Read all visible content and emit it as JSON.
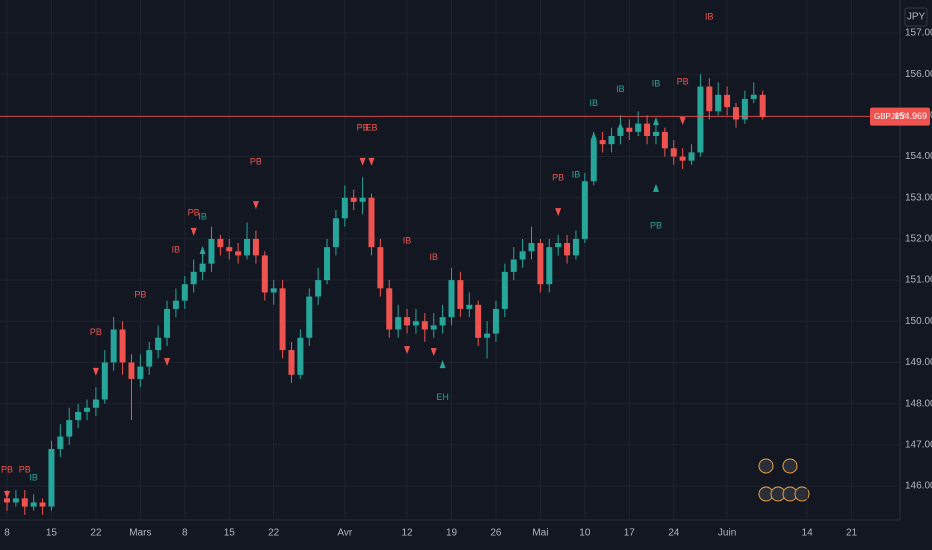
{
  "chart_data": {
    "type": "candlestick",
    "symbol": "GBPJPY",
    "currency": "JPY",
    "last_price": {
      "value": 154.969,
      "label": "154.969"
    },
    "up_color": "#26a69a",
    "down_color": "#ef5350",
    "grid": true,
    "categories": [
      "8",
      null,
      null,
      null,
      null,
      "15",
      null,
      null,
      null,
      null,
      "22",
      null,
      null,
      null,
      null,
      "Mars",
      null,
      null,
      null,
      null,
      "8",
      null,
      null,
      null,
      null,
      "15",
      null,
      null,
      null,
      null,
      "22",
      null,
      null,
      null,
      null,
      null,
      null,
      null,
      "Avr",
      null,
      null,
      null,
      null,
      null,
      null,
      "12",
      null,
      null,
      null,
      null,
      "19",
      null,
      null,
      null,
      null,
      "26",
      null,
      null,
      null,
      null,
      "Mai",
      null,
      null,
      null,
      null,
      "10",
      null,
      null,
      null,
      null,
      "17",
      null,
      null,
      null,
      null,
      "24",
      null,
      null,
      null,
      null,
      null,
      "Juin",
      null,
      null,
      null,
      null,
      null,
      null,
      null,
      null,
      "14",
      null,
      null,
      null,
      null,
      "21",
      null,
      null,
      null,
      null
    ],
    "open": [
      145.7,
      145.6,
      145.7,
      145.5,
      145.6,
      145.5,
      146.9,
      147.2,
      147.6,
      147.8,
      147.9,
      148.1,
      149.0,
      149.8,
      149.0,
      148.6,
      148.9,
      149.3,
      149.6,
      150.3,
      150.5,
      150.9,
      151.2,
      151.4,
      152.0,
      151.8,
      151.7,
      151.6,
      152.0,
      151.6,
      150.7,
      150.8,
      149.3,
      148.7,
      149.6,
      150.6,
      151.0,
      151.8,
      152.5,
      153.0,
      152.9,
      153.0,
      151.8,
      150.8,
      149.8,
      150.1,
      149.9,
      150.0,
      149.8,
      149.9,
      150.1,
      151.0,
      150.3,
      150.4,
      149.6,
      149.7,
      150.3,
      151.2,
      151.5,
      151.7,
      151.9,
      150.9,
      151.8,
      151.9,
      151.6,
      152.0,
      153.4,
      154.4,
      154.3,
      154.5,
      154.7,
      154.6,
      154.8,
      154.5,
      154.6,
      154.2,
      154.0,
      153.9,
      154.1,
      155.7,
      155.1,
      155.5,
      155.2,
      154.9,
      155.4,
      155.5,
      null,
      null,
      null,
      null,
      null,
      null,
      null,
      null,
      null,
      null,
      null,
      null,
      null,
      null
    ],
    "high": [
      145.9,
      145.9,
      145.9,
      145.8,
      145.7,
      147.1,
      147.5,
      147.9,
      148.0,
      148.1,
      148.4,
      149.3,
      150.1,
      150.0,
      149.2,
      149.2,
      149.5,
      149.9,
      150.5,
      150.8,
      151.1,
      151.5,
      151.7,
      152.3,
      152.1,
      152.0,
      151.9,
      152.4,
      152.2,
      151.7,
      151.0,
      151.0,
      149.5,
      149.8,
      150.8,
      151.3,
      152.0,
      152.7,
      153.3,
      153.2,
      153.5,
      153.1,
      152.0,
      151.0,
      150.4,
      150.3,
      150.3,
      150.2,
      150.2,
      150.4,
      151.3,
      151.2,
      150.7,
      150.5,
      150.0,
      150.5,
      151.4,
      151.8,
      152.0,
      152.3,
      152.0,
      152.0,
      152.1,
      152.1,
      152.2,
      153.6,
      154.6,
      154.6,
      154.7,
      155.0,
      154.9,
      155.1,
      155.0,
      154.9,
      154.7,
      154.4,
      154.2,
      154.3,
      156.0,
      155.9,
      155.8,
      155.7,
      155.3,
      155.6,
      155.8,
      155.6,
      null,
      null,
      null,
      null,
      null,
      null,
      null,
      null,
      null,
      null,
      null,
      null,
      null,
      null
    ],
    "low": [
      145.4,
      145.5,
      145.3,
      145.4,
      145.3,
      145.4,
      146.7,
      147.0,
      147.4,
      147.6,
      147.7,
      148.0,
      148.8,
      148.7,
      147.6,
      148.4,
      148.7,
      149.1,
      149.4,
      150.1,
      150.3,
      150.7,
      151.0,
      151.2,
      151.6,
      151.5,
      151.4,
      151.5,
      151.4,
      150.5,
      150.4,
      149.1,
      148.5,
      148.6,
      149.4,
      150.4,
      150.9,
      151.6,
      152.3,
      152.7,
      152.6,
      151.6,
      150.6,
      149.6,
      149.6,
      149.7,
      149.7,
      149.5,
      149.6,
      149.7,
      149.9,
      150.1,
      150.1,
      149.4,
      149.1,
      149.5,
      150.1,
      151.0,
      151.3,
      151.5,
      150.7,
      150.7,
      151.6,
      151.4,
      151.5,
      151.9,
      153.3,
      154.1,
      154.1,
      154.3,
      154.4,
      154.5,
      154.3,
      154.3,
      154.0,
      153.8,
      153.7,
      153.8,
      154.0,
      154.9,
      155.0,
      155.0,
      154.7,
      154.8,
      155.3,
      154.9,
      null,
      null,
      null,
      null,
      null,
      null,
      null,
      null,
      null,
      null,
      null,
      null,
      null,
      null
    ],
    "close": [
      145.6,
      145.7,
      145.5,
      145.6,
      145.5,
      146.9,
      147.2,
      147.6,
      147.8,
      147.9,
      148.1,
      149.0,
      149.8,
      149.0,
      148.6,
      148.9,
      149.3,
      149.6,
      150.3,
      150.5,
      150.9,
      151.2,
      151.4,
      152.0,
      151.8,
      151.7,
      151.6,
      152.0,
      151.6,
      150.7,
      150.8,
      149.3,
      148.7,
      149.6,
      150.6,
      151.0,
      151.8,
      152.5,
      153.0,
      152.9,
      153.0,
      151.8,
      150.8,
      149.8,
      150.1,
      149.9,
      150.0,
      149.8,
      149.9,
      150.1,
      151.0,
      150.3,
      150.4,
      149.6,
      149.7,
      150.3,
      151.2,
      151.5,
      151.7,
      151.9,
      150.9,
      151.8,
      151.9,
      151.6,
      152.0,
      153.4,
      154.4,
      154.3,
      154.5,
      154.7,
      154.6,
      154.8,
      154.5,
      154.6,
      154.2,
      154.0,
      153.9,
      154.1,
      155.7,
      155.1,
      155.5,
      155.2,
      154.9,
      155.4,
      155.5,
      154.97,
      null,
      null,
      null,
      null,
      null,
      null,
      null,
      null,
      null,
      null,
      null,
      null,
      null,
      null
    ],
    "ylim": [
      145.174,
      157.802
    ],
    "yticks": [
      {
        "value": 146,
        "label": "146.000"
      },
      {
        "value": 147,
        "label": "147.000"
      },
      {
        "value": 148,
        "label": "148.000"
      },
      {
        "value": 149,
        "label": "149.000"
      },
      {
        "value": 150,
        "label": "150.000"
      },
      {
        "value": 151,
        "label": "151.000"
      },
      {
        "value": 152,
        "label": "152.000"
      },
      {
        "value": 153,
        "label": "153.000"
      },
      {
        "value": 154,
        "label": "154.000"
      },
      {
        "value": 155,
        "label": "155.000"
      },
      {
        "value": 156,
        "label": "156.000"
      },
      {
        "value": 157,
        "label": "157.000"
      }
    ],
    "annotations": [
      {
        "label": "PB",
        "index": 0,
        "price": 146.39,
        "color": "#ef5350"
      },
      {
        "label": "PB",
        "index": 2,
        "price": 146.39,
        "color": "#ef5350"
      },
      {
        "label": "IB",
        "index": 3,
        "price": 146.19,
        "color": "#26a69a"
      },
      {
        "label": "PB",
        "index": 10,
        "price": 149.72,
        "color": "#ef5350"
      },
      {
        "label": "PB",
        "index": 15,
        "price": 150.64,
        "color": "#ef5350"
      },
      {
        "label": "IB",
        "index": 19,
        "price": 151.73,
        "color": "#ef5350"
      },
      {
        "label": "PB",
        "index": 21,
        "price": 152.63,
        "color": "#ef5350"
      },
      {
        "label": "IB",
        "index": 22,
        "price": 152.53,
        "color": "#26a69a"
      },
      {
        "label": "PB",
        "index": 28,
        "price": 153.87,
        "color": "#ef5350"
      },
      {
        "label": "PB",
        "index": 40,
        "price": 154.69,
        "color": "#ef5350"
      },
      {
        "label": "EB",
        "index": 41,
        "price": 154.69,
        "color": "#ef5350"
      },
      {
        "label": "IB",
        "index": 45,
        "price": 151.95,
        "color": "#ef5350"
      },
      {
        "label": "IB",
        "index": 48,
        "price": 151.54,
        "color": "#ef5350"
      },
      {
        "label": "EH",
        "index": 49,
        "price": 148.14,
        "color": "#26a69a"
      },
      {
        "label": "PB",
        "index": 62,
        "price": 153.48,
        "color": "#ef5350"
      },
      {
        "label": "IB",
        "index": 64,
        "price": 153.55,
        "color": "#26a69a"
      },
      {
        "label": "IB",
        "index": 66,
        "price": 155.28,
        "color": "#26a69a"
      },
      {
        "label": "IB",
        "index": 69,
        "price": 155.62,
        "color": "#26a69a"
      },
      {
        "label": "IB",
        "index": 73,
        "price": 155.76,
        "color": "#26a69a"
      },
      {
        "label": "PB",
        "index": 73,
        "price": 152.31,
        "color": "#26a69a"
      },
      {
        "label": "PB",
        "index": 76,
        "price": 155.81,
        "color": "#ef5350"
      },
      {
        "label": "IB",
        "index": 79,
        "price": 157.39,
        "color": "#ef5350"
      }
    ],
    "triangles": [
      {
        "index": 0,
        "price": 145.78,
        "direction": "down",
        "color": "#ef5350"
      },
      {
        "index": 10,
        "price": 148.77,
        "direction": "down",
        "color": "#ef5350"
      },
      {
        "index": 18,
        "price": 149.01,
        "direction": "down",
        "color": "#ef5350"
      },
      {
        "index": 21,
        "price": 152.17,
        "direction": "down",
        "color": "#ef5350"
      },
      {
        "index": 22,
        "price": 151.73,
        "direction": "up",
        "color": "#26a69a"
      },
      {
        "index": 28,
        "price": 152.82,
        "direction": "down",
        "color": "#ef5350"
      },
      {
        "index": 40,
        "price": 153.87,
        "direction": "down",
        "color": "#ef5350"
      },
      {
        "index": 41,
        "price": 153.87,
        "direction": "down",
        "color": "#ef5350"
      },
      {
        "index": 45,
        "price": 149.3,
        "direction": "down",
        "color": "#ef5350"
      },
      {
        "index": 48,
        "price": 149.25,
        "direction": "down",
        "color": "#ef5350"
      },
      {
        "index": 49,
        "price": 148.96,
        "direction": "up",
        "color": "#26a69a"
      },
      {
        "index": 62,
        "price": 152.65,
        "direction": "down",
        "color": "#ef5350"
      },
      {
        "index": 66,
        "price": 154.5,
        "direction": "up",
        "color": "#26a69a"
      },
      {
        "index": 69,
        "price": 154.74,
        "direction": "up",
        "color": "#26a69a"
      },
      {
        "index": 73,
        "price": 154.86,
        "direction": "up",
        "color": "#26a69a"
      },
      {
        "index": 73,
        "price": 153.24,
        "direction": "up",
        "color": "#26a69a"
      },
      {
        "index": 76,
        "price": 154.86,
        "direction": "down",
        "color": "#ef5350"
      },
      {
        "index": 79,
        "price": 155.25,
        "direction": "down",
        "color": "#ef5350"
      }
    ]
  }
}
